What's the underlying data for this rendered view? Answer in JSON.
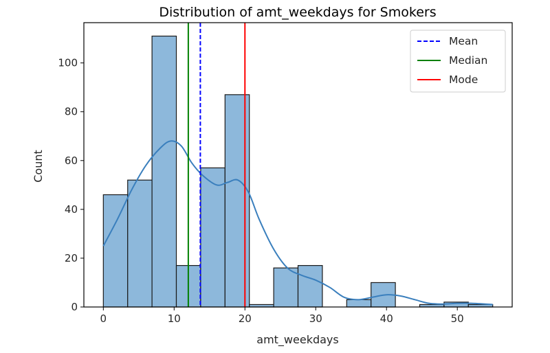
{
  "chart_data": {
    "type": "bar",
    "title": "Distribution of amt_weekdays for Smokers",
    "xlabel": "amt_weekdays",
    "ylabel": "Count",
    "xlim": [
      -2.75,
      57.75
    ],
    "ylim": [
      0,
      116.5
    ],
    "x_ticks": [
      0,
      10,
      20,
      30,
      40,
      50
    ],
    "y_ticks": [
      0,
      20,
      40,
      60,
      80,
      100
    ],
    "grid": false,
    "legend_position": "top-right",
    "histogram": {
      "bin_edges": [
        0,
        3.4375,
        6.875,
        10.3125,
        13.75,
        17.1875,
        20.625,
        24.0625,
        27.5,
        30.9375,
        34.375,
        37.8125,
        41.25,
        44.6875,
        48.125,
        51.5625,
        55
      ],
      "counts": [
        46,
        52,
        111,
        17,
        57,
        87,
        1,
        16,
        17,
        0,
        3,
        10,
        0,
        1,
        2,
        1
      ],
      "fill_color": "#8db8db",
      "edge_color": "#1a1a1a"
    },
    "kde": {
      "color": "#3a7fbd",
      "x": [
        0,
        2,
        4,
        6,
        8,
        9.5,
        11,
        12.5,
        14,
        16,
        17.5,
        19,
        20.5,
        22,
        24,
        26,
        28,
        30,
        32,
        34,
        36,
        38,
        40,
        42,
        44,
        46,
        48,
        50,
        52,
        55
      ],
      "y": [
        25,
        36,
        48,
        58,
        65,
        68,
        66,
        59,
        54,
        50,
        51,
        52,
        47,
        36,
        24,
        16,
        13,
        11,
        8,
        4,
        3,
        4,
        5,
        4.5,
        3,
        1.5,
        1.2,
        1.5,
        1.5,
        1
      ]
    },
    "series": [
      {
        "name": "Mean",
        "value": 13.7,
        "color": "#0000ff",
        "style": "dashed"
      },
      {
        "name": "Median",
        "value": 12,
        "color": "#008000",
        "style": "solid"
      },
      {
        "name": "Mode",
        "value": 20,
        "color": "#ff0000",
        "style": "solid"
      }
    ]
  }
}
